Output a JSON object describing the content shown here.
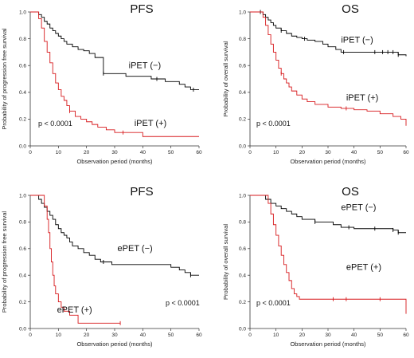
{
  "chart_data": [
    {
      "id": "pfs-ipet",
      "type": "line",
      "step": true,
      "title": "PFS",
      "xlabel": "Observation period (months)",
      "ylabel": "Probability of progression free survival",
      "xlim": [
        0,
        60
      ],
      "ylim": [
        0,
        1.0
      ],
      "xticks": [
        0,
        10,
        20,
        30,
        40,
        50,
        60
      ],
      "yticks": [
        0.0,
        0.2,
        0.4,
        0.6,
        0.8,
        1.0
      ],
      "pvalue": "p < 0.0001",
      "grid": false,
      "legend": "inline labels",
      "series": [
        {
          "name": "iPET (−)",
          "color": "#000000",
          "x": [
            0,
            3,
            4,
            5,
            6,
            7,
            8,
            9,
            10,
            11,
            12,
            13,
            15,
            17,
            19,
            21,
            23,
            26,
            30,
            34,
            38,
            40,
            43,
            46,
            48,
            50,
            53,
            55,
            57,
            60
          ],
          "y": [
            1.0,
            0.98,
            0.96,
            0.93,
            0.91,
            0.88,
            0.86,
            0.84,
            0.82,
            0.8,
            0.78,
            0.76,
            0.74,
            0.72,
            0.71,
            0.69,
            0.66,
            0.54,
            0.54,
            0.52,
            0.52,
            0.52,
            0.5,
            0.5,
            0.48,
            0.48,
            0.46,
            0.44,
            0.42,
            0.42
          ],
          "censor_x": [
            26,
            45,
            58
          ]
        },
        {
          "name": "iPET (+)",
          "color": "#d7191c",
          "x": [
            0,
            3,
            4,
            5,
            6,
            7,
            8,
            9,
            10,
            11,
            12,
            13,
            14,
            16,
            18,
            20,
            22,
            24,
            27,
            30,
            35,
            40,
            45,
            60
          ],
          "y": [
            1.0,
            0.95,
            0.88,
            0.78,
            0.7,
            0.62,
            0.54,
            0.47,
            0.42,
            0.37,
            0.34,
            0.3,
            0.26,
            0.22,
            0.2,
            0.18,
            0.16,
            0.14,
            0.12,
            0.1,
            0.1,
            0.07,
            0.07,
            0.07
          ],
          "censor_x": [
            14,
            33
          ]
        }
      ],
      "labels": [
        {
          "text": "iPET (−)",
          "x": 35,
          "y": 0.58
        },
        {
          "text": "iPET (+)",
          "x": 37,
          "y": 0.15
        }
      ]
    },
    {
      "id": "os-ipet",
      "type": "line",
      "step": true,
      "title": "OS",
      "xlabel": "Observation period (months)",
      "ylabel": "Probability of overall  survival",
      "xlim": [
        0,
        60
      ],
      "ylim": [
        0,
        1.0
      ],
      "xticks": [
        0,
        10,
        20,
        30,
        40,
        50,
        60
      ],
      "yticks": [
        0.0,
        0.2,
        0.4,
        0.6,
        0.8,
        1.0
      ],
      "pvalue": "p < 0.0001",
      "grid": false,
      "legend": "inline labels",
      "series": [
        {
          "name": "iPET (−)",
          "color": "#000000",
          "x": [
            0,
            5,
            6,
            7,
            8,
            9,
            10,
            12,
            14,
            16,
            18,
            20,
            22,
            25,
            28,
            30,
            33,
            35,
            40,
            45,
            50,
            55,
            57,
            60
          ],
          "y": [
            1.0,
            0.98,
            0.96,
            0.94,
            0.92,
            0.9,
            0.88,
            0.86,
            0.84,
            0.82,
            0.81,
            0.8,
            0.79,
            0.78,
            0.76,
            0.74,
            0.72,
            0.7,
            0.7,
            0.7,
            0.7,
            0.7,
            0.68,
            0.67
          ],
          "censor_x": [
            4,
            12,
            21,
            36,
            48,
            51,
            53,
            55,
            57
          ]
        },
        {
          "name": "iPET (+)",
          "color": "#d7191c",
          "x": [
            0,
            5,
            6,
            7,
            8,
            9,
            10,
            11,
            12,
            13,
            14,
            15,
            16,
            18,
            20,
            22,
            25,
            30,
            35,
            40,
            45,
            50,
            55,
            58,
            60
          ],
          "y": [
            1.0,
            0.96,
            0.9,
            0.83,
            0.76,
            0.7,
            0.64,
            0.58,
            0.54,
            0.5,
            0.47,
            0.44,
            0.41,
            0.38,
            0.35,
            0.33,
            0.31,
            0.29,
            0.28,
            0.27,
            0.26,
            0.24,
            0.22,
            0.2,
            0.15
          ],
          "censor_x": [
            12,
            37
          ]
        }
      ],
      "labels": [
        {
          "text": "iPET (−)",
          "x": 35,
          "y": 0.77
        },
        {
          "text": "iPET (+)",
          "x": 37,
          "y": 0.34
        }
      ]
    },
    {
      "id": "pfs-epet",
      "type": "line",
      "step": true,
      "title": "PFS",
      "xlabel": "Observation period (months)",
      "ylabel": "Probability of progression free survival",
      "xlim": [
        0,
        60
      ],
      "ylim": [
        0,
        1.0
      ],
      "xticks": [
        0,
        10,
        20,
        30,
        40,
        50,
        60
      ],
      "yticks": [
        0.0,
        0.2,
        0.4,
        0.6,
        0.8,
        1.0
      ],
      "pvalue": "p < 0.0001",
      "grid": false,
      "legend": "inline labels",
      "series": [
        {
          "name": "ePET (−)",
          "color": "#000000",
          "x": [
            0,
            3,
            4,
            5,
            6,
            7,
            8,
            9,
            10,
            11,
            12,
            13,
            14,
            15,
            17,
            19,
            21,
            23,
            25,
            29,
            35,
            40,
            45,
            50,
            53,
            55,
            57,
            60
          ],
          "y": [
            1.0,
            0.97,
            0.94,
            0.91,
            0.88,
            0.85,
            0.82,
            0.78,
            0.75,
            0.72,
            0.7,
            0.68,
            0.65,
            0.62,
            0.6,
            0.57,
            0.55,
            0.52,
            0.5,
            0.48,
            0.48,
            0.48,
            0.48,
            0.46,
            0.44,
            0.42,
            0.4,
            0.4
          ],
          "censor_x": [
            26,
            57
          ]
        },
        {
          "name": "ePET (+)",
          "color": "#d7191c",
          "x": [
            0,
            5,
            6,
            6.5,
            7,
            7.5,
            8,
            8.5,
            9,
            10,
            11,
            12,
            14,
            17,
            32
          ],
          "y": [
            1.0,
            0.92,
            0.82,
            0.72,
            0.6,
            0.5,
            0.4,
            0.32,
            0.26,
            0.2,
            0.16,
            0.13,
            0.1,
            0.04,
            0.04
          ],
          "censor_x": [
            32
          ]
        }
      ],
      "labels": [
        {
          "text": "ePET (−)",
          "x": 31,
          "y": 0.58
        },
        {
          "text": "ePET (+)",
          "x": 9.5,
          "y": 0.12
        }
      ]
    },
    {
      "id": "os-epet",
      "type": "line",
      "step": true,
      "title": "OS",
      "xlabel": "Observation period (months)",
      "ylabel": "Probability of overall  survival",
      "xlim": [
        0,
        60
      ],
      "ylim": [
        0,
        1.0
      ],
      "xticks": [
        0,
        10,
        20,
        30,
        40,
        50,
        60
      ],
      "yticks": [
        0.0,
        0.2,
        0.4,
        0.6,
        0.8,
        1.0
      ],
      "pvalue": "p < 0.0001",
      "grid": false,
      "legend": "inline labels",
      "series": [
        {
          "name": "ePET (−)",
          "color": "#000000",
          "x": [
            0,
            6,
            8,
            10,
            12,
            14,
            16,
            18,
            20,
            25,
            30,
            32,
            35,
            40,
            45,
            50,
            55,
            57,
            60
          ],
          "y": [
            1.0,
            0.97,
            0.94,
            0.92,
            0.9,
            0.88,
            0.86,
            0.84,
            0.82,
            0.8,
            0.8,
            0.78,
            0.76,
            0.75,
            0.75,
            0.75,
            0.74,
            0.72,
            0.72
          ],
          "censor_x": [
            25,
            38,
            48,
            55,
            57
          ]
        },
        {
          "name": "ePET (+)",
          "color": "#d7191c",
          "x": [
            0,
            7,
            8,
            9,
            10,
            11,
            12,
            13,
            14,
            15,
            16,
            17,
            18,
            19,
            25,
            30,
            35,
            40,
            45,
            50,
            55,
            59.5,
            60
          ],
          "y": [
            1.0,
            0.94,
            0.86,
            0.78,
            0.7,
            0.62,
            0.55,
            0.48,
            0.42,
            0.36,
            0.3,
            0.26,
            0.24,
            0.22,
            0.22,
            0.22,
            0.22,
            0.22,
            0.22,
            0.22,
            0.22,
            0.22,
            0.11
          ],
          "censor_x": [
            32,
            37,
            50
          ]
        }
      ],
      "labels": [
        {
          "text": "ePET (−)",
          "x": 35,
          "y": 0.89
        },
        {
          "text": "ePET (+)",
          "x": 37,
          "y": 0.44
        }
      ]
    }
  ]
}
